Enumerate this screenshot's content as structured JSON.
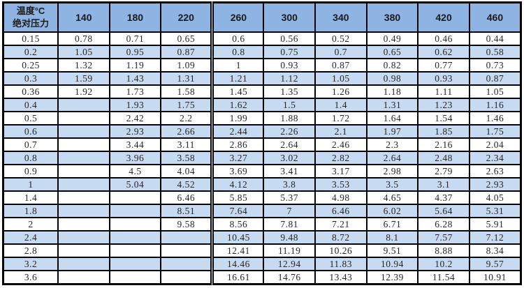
{
  "table": {
    "corner": {
      "line1": "温度°C",
      "line2": "绝对压力"
    },
    "columns": [
      "140",
      "180",
      "220",
      "260",
      "300",
      "340",
      "380",
      "420",
      "460"
    ],
    "rows": [
      {
        "label": "0.15",
        "values": [
          "0.78",
          "0.71",
          "0.65",
          "0.6",
          "0.56",
          "0.52",
          "0.49",
          "0.46",
          "0.44"
        ]
      },
      {
        "label": "0.2",
        "values": [
          "1.05",
          "0.95",
          "0.87",
          "0.8",
          "0.75",
          "0.7",
          "0.65",
          "0.62",
          "0.58"
        ]
      },
      {
        "label": "0.25",
        "values": [
          "1.32",
          "1.19",
          "1.09",
          "1",
          "0.93",
          "0.87",
          "0.82",
          "0.77",
          "0.73"
        ]
      },
      {
        "label": "0.3",
        "values": [
          "1.59",
          "1.43",
          "1.31",
          "1.21",
          "1.12",
          "1.05",
          "0.98",
          "0.93",
          "0.87"
        ]
      },
      {
        "label": "0.36",
        "values": [
          "1.92",
          "1.73",
          "1.58",
          "1.45",
          "1.35",
          "1.26",
          "1.18",
          "1.11",
          "1.05"
        ]
      },
      {
        "label": "0.4",
        "values": [
          "",
          "1.93",
          "1.75",
          "1.62",
          "1.5",
          "1.4",
          "1.31",
          "1.23",
          "1.16"
        ]
      },
      {
        "label": "0.5",
        "values": [
          "",
          "2.42",
          "2.2",
          "1.99",
          "1.88",
          "1.72",
          "1.64",
          "1.54",
          "1.46"
        ]
      },
      {
        "label": "0.6",
        "values": [
          "",
          "2.93",
          "2.66",
          "2.44",
          "2.26",
          "2.1",
          "1.97",
          "1.85",
          "1.75"
        ]
      },
      {
        "label": "0.7",
        "values": [
          "",
          "3.44",
          "3.11",
          "2.86",
          "2.64",
          "2.46",
          "2.3",
          "2.16",
          "2.04"
        ]
      },
      {
        "label": "0.8",
        "values": [
          "",
          "3.96",
          "3.58",
          "3.27",
          "3.02",
          "2.82",
          "2.64",
          "2.48",
          "2.34"
        ]
      },
      {
        "label": "0.9",
        "values": [
          "",
          "4.5",
          "4.04",
          "3.69",
          "3.41",
          "3.17",
          "2.98",
          "2.79",
          "2.63"
        ]
      },
      {
        "label": "1",
        "values": [
          "",
          "5.04",
          "4.52",
          "4.12",
          "3.8",
          "3.53",
          "3.5",
          "3.1",
          "2.93"
        ]
      },
      {
        "label": "1.4",
        "values": [
          "",
          "",
          "6.46",
          "5.85",
          "5.37",
          "4.98",
          "4.65",
          "4.37",
          "4.05"
        ]
      },
      {
        "label": "1.8",
        "values": [
          "",
          "",
          "8.51",
          "7.64",
          "7",
          "6.46",
          "6.02",
          "5.64",
          "5.31"
        ]
      },
      {
        "label": "2",
        "values": [
          "",
          "",
          "9.58",
          "8.56",
          "7.81",
          "7.21",
          "6.71",
          "6.28",
          "5.91"
        ]
      },
      {
        "label": "2.4",
        "values": [
          "",
          "",
          "",
          "10.45",
          "9.48",
          "8.72",
          "8.1",
          "7.57",
          "7.12"
        ]
      },
      {
        "label": "2.8",
        "values": [
          "",
          "",
          "",
          "12.41",
          "11.19",
          "10.26",
          "9.51",
          "8.88",
          "8.34"
        ]
      },
      {
        "label": "3.2",
        "values": [
          "",
          "",
          "",
          "14.46",
          "12.94",
          "11.83",
          "10.94",
          "10.2",
          "9.57"
        ]
      },
      {
        "label": "3.6",
        "values": [
          "",
          "",
          "",
          "16.61",
          "14.76",
          "13.43",
          "12.39",
          "11.54",
          "10.91"
        ]
      }
    ]
  },
  "colors": {
    "header_bg": "#8DB4E2",
    "alt_row_bg": "#C6DAF2",
    "border": "#000000",
    "text": "#262626"
  }
}
